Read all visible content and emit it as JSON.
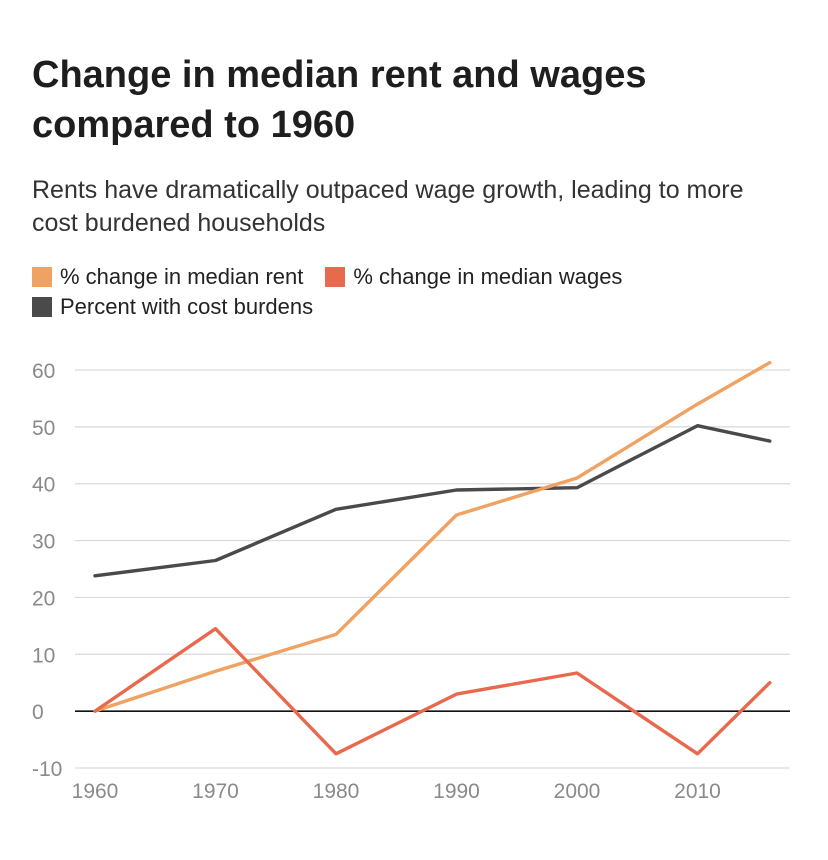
{
  "chart_data": {
    "type": "line",
    "title": "Change in median rent and wages compared to 1960",
    "subtitle": "Rents have dramatically outpaced wage growth, leading to more cost burdened households",
    "xlabel": "",
    "ylabel": "",
    "x": [
      1960,
      1970,
      1980,
      1990,
      2000,
      2010,
      2016
    ],
    "xticks": [
      "1960",
      "1970",
      "1980",
      "1990",
      "2000",
      "2010"
    ],
    "xlim": [
      1960,
      2016
    ],
    "ylim": [
      -10,
      60
    ],
    "yticks": [
      -10,
      0,
      10,
      20,
      30,
      40,
      50,
      60
    ],
    "grid": true,
    "legend_position": "top-left",
    "series": [
      {
        "name": "% change in median rent",
        "color": "#f0a262",
        "values": [
          0,
          7,
          13.5,
          34.5,
          41,
          54,
          61.3
        ]
      },
      {
        "name": "% change in median wages",
        "color": "#e8694e",
        "values": [
          0,
          14.5,
          -7.5,
          3,
          6.7,
          -7.5,
          5
        ]
      },
      {
        "name": "Percent with cost burdens",
        "color": "#4a4a4a",
        "values": [
          23.8,
          26.5,
          35.5,
          38.9,
          39.3,
          50.2,
          47.5
        ]
      }
    ]
  }
}
